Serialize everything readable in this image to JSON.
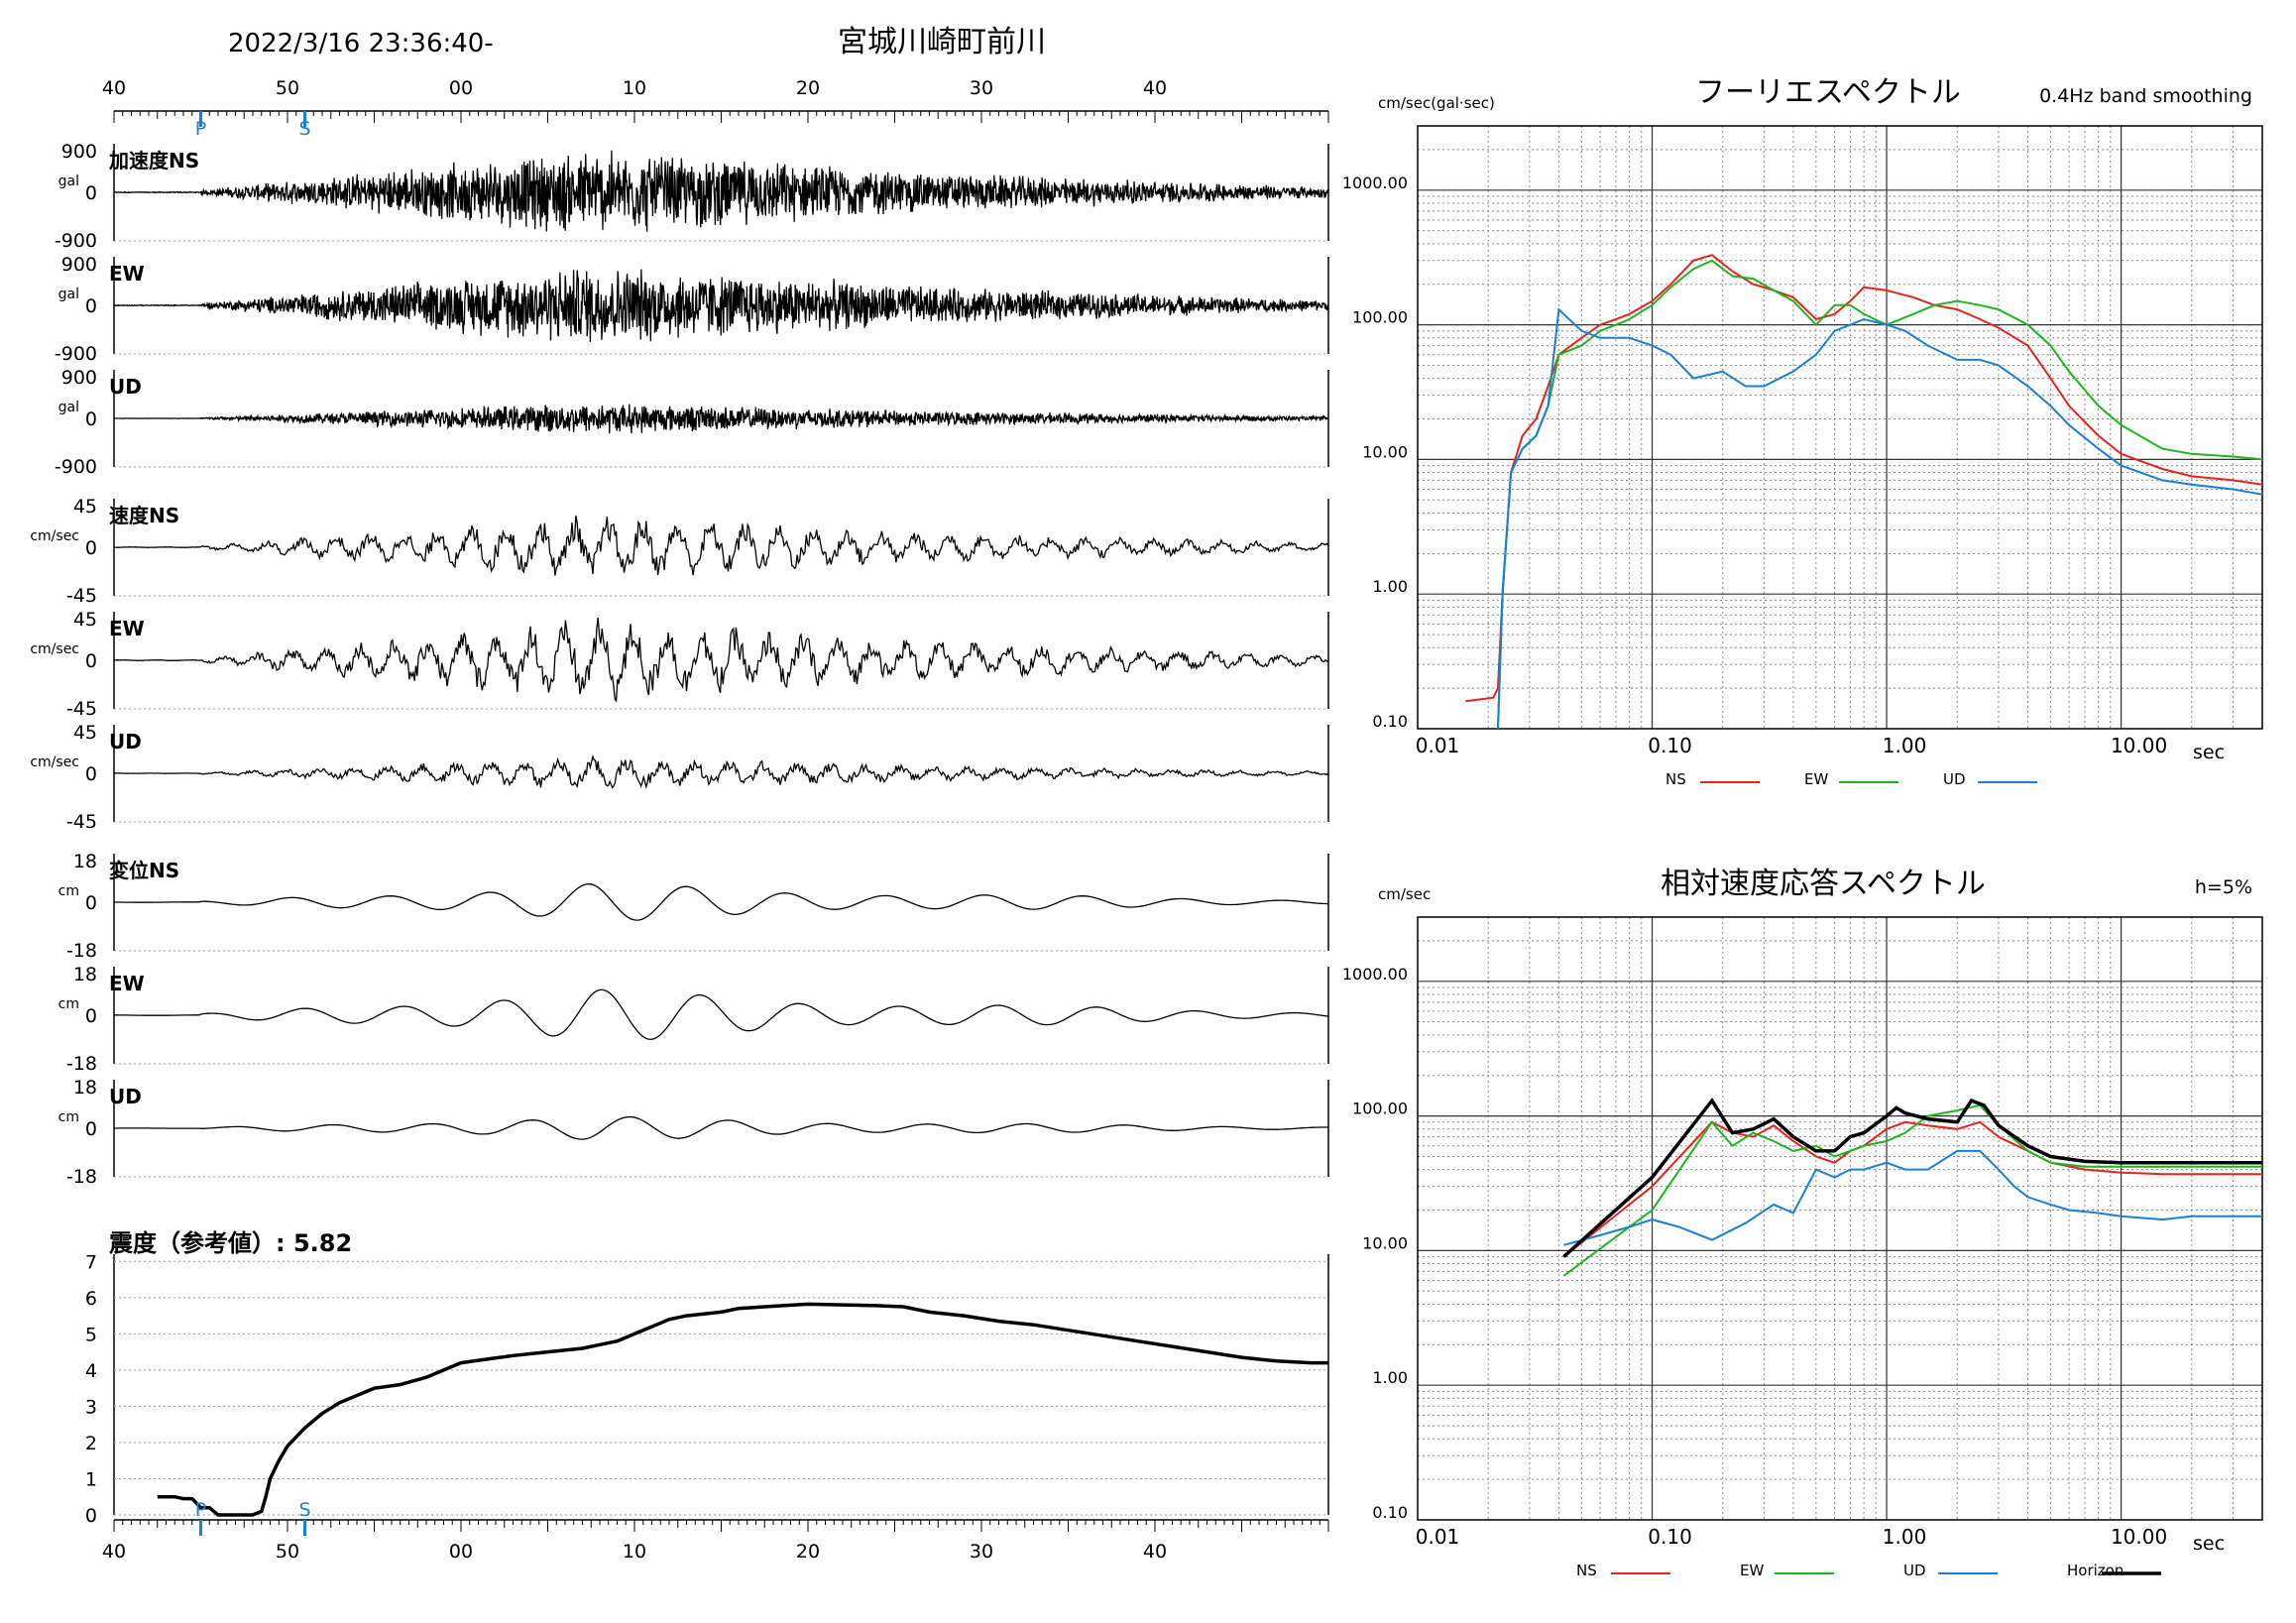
{
  "header": {
    "datetime": "2022/3/16 23:36:40-",
    "station": "宮城川崎町前川"
  },
  "timeline": {
    "tick_labels": [
      "40",
      "50",
      "00",
      "10",
      "20",
      "30",
      "40"
    ],
    "p_label": "P",
    "s_label": "S",
    "p_time_s": 10,
    "s_time_s": 22
  },
  "colors": {
    "trace": "#000000",
    "marker": "#1a7fd6",
    "ns": "#e8231e",
    "ew": "#1fb51f",
    "ud": "#1a7fd6",
    "horizon": "#000000",
    "grid": "#666666"
  },
  "waveforms": [
    {
      "title": "加速度NS",
      "unit": "gal",
      "max": "900",
      "zero": "0",
      "min": "-900",
      "peak": 0.95,
      "kind": "acc"
    },
    {
      "title": "EW",
      "unit": "gal",
      "max": "900",
      "zero": "0",
      "min": "-900",
      "peak": 0.9,
      "kind": "acc"
    },
    {
      "title": "UD",
      "unit": "gal",
      "max": "900",
      "zero": "0",
      "min": "-900",
      "peak": 0.35,
      "kind": "acc"
    },
    {
      "title": "速度NS",
      "unit": "cm/sec",
      "max": "45",
      "zero": "0",
      "min": "-45",
      "peak": 0.7,
      "kind": "vel"
    },
    {
      "title": "EW",
      "unit": "cm/sec",
      "max": "45",
      "zero": "0",
      "min": "-45",
      "peak": 0.9,
      "kind": "vel"
    },
    {
      "title": "UD",
      "unit": "cm/sec",
      "max": "45",
      "zero": "0",
      "min": "-45",
      "peak": 0.35,
      "kind": "vel"
    },
    {
      "title": "変位NS",
      "unit": "cm",
      "max": "18",
      "zero": "0",
      "min": "-18",
      "peak": 0.4,
      "kind": "disp"
    },
    {
      "title": "EW",
      "unit": "cm",
      "max": "18",
      "zero": "0",
      "min": "-18",
      "peak": 0.55,
      "kind": "disp"
    },
    {
      "title": "UD",
      "unit": "cm",
      "max": "18",
      "zero": "0",
      "min": "-18",
      "peak": 0.25,
      "kind": "disp"
    }
  ],
  "intensity": {
    "title": "震度（参考値）: 5.82",
    "y_labels": [
      "7",
      "6",
      "5",
      "4",
      "3",
      "2",
      "1",
      "0"
    ],
    "series": [
      [
        5,
        0.5
      ],
      [
        7,
        0.5
      ],
      [
        8,
        0.45
      ],
      [
        9,
        0.45
      ],
      [
        10,
        0.2
      ],
      [
        11,
        0.2
      ],
      [
        12,
        0
      ],
      [
        13,
        0
      ],
      [
        14,
        0
      ],
      [
        15,
        0
      ],
      [
        16,
        0
      ],
      [
        17,
        0.1
      ],
      [
        17.5,
        0.5
      ],
      [
        18,
        1.0
      ],
      [
        19,
        1.5
      ],
      [
        20,
        1.9
      ],
      [
        22,
        2.4
      ],
      [
        24,
        2.8
      ],
      [
        26,
        3.1
      ],
      [
        28,
        3.3
      ],
      [
        30,
        3.5
      ],
      [
        33,
        3.6
      ],
      [
        36,
        3.8
      ],
      [
        38,
        4.0
      ],
      [
        40,
        4.2
      ],
      [
        43,
        4.3
      ],
      [
        46,
        4.4
      ],
      [
        50,
        4.5
      ],
      [
        54,
        4.6
      ],
      [
        56,
        4.7
      ],
      [
        58,
        4.8
      ],
      [
        60,
        5.0
      ],
      [
        62,
        5.2
      ],
      [
        64,
        5.4
      ],
      [
        66,
        5.5
      ],
      [
        70,
        5.6
      ],
      [
        72,
        5.7
      ],
      [
        75,
        5.75
      ],
      [
        80,
        5.82
      ],
      [
        84,
        5.8
      ],
      [
        88,
        5.78
      ],
      [
        91,
        5.75
      ],
      [
        94,
        5.6
      ],
      [
        98,
        5.5
      ],
      [
        102,
        5.35
      ],
      [
        106,
        5.25
      ],
      [
        110,
        5.1
      ],
      [
        114,
        4.95
      ],
      [
        118,
        4.8
      ],
      [
        122,
        4.65
      ],
      [
        126,
        4.5
      ],
      [
        130,
        4.35
      ],
      [
        134,
        4.25
      ],
      [
        138,
        4.2
      ],
      [
        140,
        4.2
      ]
    ]
  },
  "fourier": {
    "title": "フーリエスペクトル",
    "note": "0.4Hz band smoothing",
    "unit": "cm/sec(gal·sec)",
    "x_ticks": [
      "0.01",
      "0.10",
      "1.00",
      "10.00"
    ],
    "x_unit": "sec",
    "y_ticks": [
      "1000.00",
      "100.00",
      "10.00",
      "1.00",
      "0.10"
    ],
    "legend": [
      "NS",
      "EW",
      "UD"
    ],
    "chart_data": {
      "type": "line",
      "x_scale": "log",
      "y_scale": "log",
      "xlim": [
        0.01,
        40
      ],
      "ylim": [
        0.1,
        3000
      ],
      "series": [
        {
          "name": "NS",
          "color": "#e8231e",
          "x": [
            0.016,
            0.021,
            0.022,
            0.023,
            0.025,
            0.028,
            0.032,
            0.036,
            0.04,
            0.05,
            0.06,
            0.07,
            0.08,
            0.1,
            0.12,
            0.15,
            0.18,
            0.22,
            0.27,
            0.33,
            0.4,
            0.5,
            0.6,
            0.7,
            0.8,
            1.0,
            1.3,
            1.6,
            2.0,
            2.5,
            3.0,
            4.0,
            5.0,
            6.0,
            8.0,
            10.0,
            15.0,
            20.0,
            30.0,
            40.0
          ],
          "y": [
            0.16,
            0.17,
            0.2,
            1.0,
            8,
            15,
            20,
            35,
            60,
            80,
            100,
            110,
            120,
            150,
            200,
            300,
            330,
            250,
            200,
            180,
            160,
            110,
            120,
            150,
            190,
            180,
            160,
            140,
            130,
            110,
            95,
            70,
            40,
            25,
            15,
            11,
            8.5,
            7.5,
            7,
            6.5
          ]
        },
        {
          "name": "EW",
          "color": "#1fb51f",
          "x": [
            0.022,
            0.023,
            0.025,
            0.028,
            0.032,
            0.036,
            0.04,
            0.05,
            0.06,
            0.07,
            0.08,
            0.1,
            0.12,
            0.15,
            0.18,
            0.22,
            0.27,
            0.33,
            0.4,
            0.5,
            0.6,
            0.7,
            0.8,
            1.0,
            1.3,
            1.6,
            2.0,
            2.5,
            3.0,
            4.0,
            5.0,
            6.0,
            8.0,
            10.0,
            15.0,
            20.0,
            30.0,
            40.0
          ],
          "y": [
            0.1,
            1.0,
            8,
            12,
            15,
            25,
            60,
            70,
            90,
            100,
            110,
            140,
            190,
            260,
            300,
            230,
            220,
            180,
            150,
            100,
            140,
            140,
            120,
            100,
            120,
            140,
            150,
            140,
            130,
            100,
            70,
            45,
            25,
            18,
            12,
            11,
            10.5,
            10
          ]
        },
        {
          "name": "UD",
          "color": "#1a7fd6",
          "x": [
            0.022,
            0.023,
            0.025,
            0.028,
            0.032,
            0.036,
            0.04,
            0.05,
            0.06,
            0.08,
            0.1,
            0.12,
            0.15,
            0.2,
            0.25,
            0.3,
            0.4,
            0.5,
            0.6,
            0.7,
            0.8,
            1.0,
            1.2,
            1.5,
            2.0,
            2.5,
            3.0,
            4.0,
            5.0,
            6.0,
            8.0,
            10.0,
            15.0,
            20.0,
            30.0,
            40.0
          ],
          "y": [
            0.1,
            1.0,
            8,
            12,
            15,
            25,
            130,
            90,
            80,
            80,
            70,
            60,
            40,
            45,
            35,
            35,
            45,
            60,
            90,
            100,
            110,
            100,
            90,
            70,
            55,
            55,
            50,
            35,
            25,
            18,
            12,
            9,
            7,
            6.5,
            6,
            5.5
          ]
        }
      ]
    }
  },
  "response": {
    "title": "相対速度応答スペクトル",
    "note": "h=5%",
    "unit": "cm/sec",
    "x_ticks": [
      "0.01",
      "0.10",
      "1.00",
      "10.00"
    ],
    "x_unit": "sec",
    "y_ticks": [
      "1000.00",
      "100.00",
      "10.00",
      "1.00",
      "0.10"
    ],
    "legend": [
      "NS",
      "EW",
      "UD",
      "Horizon"
    ],
    "chart_data": {
      "type": "line",
      "x_scale": "log",
      "y_scale": "log",
      "xlim": [
        0.01,
        40
      ],
      "ylim": [
        0.1,
        3000
      ],
      "series": [
        {
          "name": "NS",
          "color": "#e8231e",
          "x": [
            0.042,
            0.1,
            0.18,
            0.22,
            0.27,
            0.33,
            0.4,
            0.5,
            0.6,
            0.7,
            0.8,
            1.0,
            1.2,
            1.5,
            2.0,
            2.5,
            3.0,
            4.0,
            5.0,
            7.0,
            10.0,
            15.0,
            20.0,
            30.0,
            40.0
          ],
          "y": [
            9,
            30,
            90,
            75,
            70,
            85,
            65,
            50,
            45,
            55,
            60,
            80,
            90,
            85,
            80,
            90,
            70,
            55,
            45,
            40,
            38,
            37,
            37,
            37,
            37
          ]
        },
        {
          "name": "EW",
          "color": "#1fb51f",
          "x": [
            0.042,
            0.1,
            0.18,
            0.22,
            0.27,
            0.33,
            0.4,
            0.5,
            0.6,
            0.7,
            0.8,
            1.0,
            1.2,
            1.5,
            2.0,
            2.5,
            3.0,
            4.0,
            5.0,
            7.0,
            10.0,
            15.0,
            20.0,
            30.0,
            40.0
          ],
          "y": [
            6.5,
            20,
            90,
            60,
            75,
            65,
            55,
            60,
            50,
            55,
            60,
            65,
            75,
            100,
            110,
            120,
            85,
            55,
            45,
            42,
            42,
            42,
            42,
            42,
            42
          ]
        },
        {
          "name": "UD",
          "color": "#1a7fd6",
          "x": [
            0.042,
            0.06,
            0.08,
            0.1,
            0.13,
            0.18,
            0.25,
            0.33,
            0.4,
            0.5,
            0.6,
            0.7,
            0.8,
            1.0,
            1.2,
            1.5,
            2.0,
            2.5,
            3.0,
            3.5,
            4.0,
            5.0,
            6.0,
            8.0,
            10.0,
            15.0,
            20.0,
            30.0,
            40.0
          ],
          "y": [
            11,
            13,
            15,
            17,
            15,
            12,
            16,
            22,
            19,
            40,
            35,
            40,
            40,
            45,
            40,
            40,
            55,
            55,
            40,
            30,
            25,
            22,
            20,
            19,
            18,
            17,
            18,
            18,
            18
          ]
        },
        {
          "name": "Horizon",
          "color": "#000000",
          "x": [
            0.042,
            0.1,
            0.18,
            0.22,
            0.27,
            0.33,
            0.4,
            0.5,
            0.6,
            0.7,
            0.8,
            1.0,
            1.1,
            1.2,
            1.5,
            2.0,
            2.3,
            2.6,
            3.0,
            4.0,
            5.0,
            7.0,
            10.0,
            15.0,
            20.0,
            30.0,
            40.0
          ],
          "y": [
            9,
            35,
            130,
            75,
            80,
            95,
            70,
            55,
            55,
            70,
            75,
            100,
            115,
            105,
            95,
            90,
            130,
            120,
            85,
            60,
            50,
            46,
            45,
            45,
            45,
            45,
            45
          ]
        }
      ]
    }
  }
}
